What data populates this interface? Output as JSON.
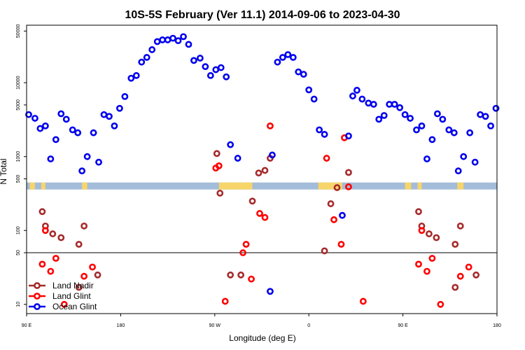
{
  "chart_data": {
    "type": "scatter",
    "title": "10S-5S February (Ver 11.1)   2014-09-06 to 2023-04-30",
    "xlabel": "Longitude (deg E)",
    "ylabel": "N Total",
    "x_ticks": [
      {
        "value": 90,
        "label": "90 E"
      },
      {
        "value": 180,
        "label": "180"
      },
      {
        "value": 270,
        "label": "90 W"
      },
      {
        "value": 360,
        "label": "0"
      },
      {
        "value": 450,
        "label": "90 E"
      },
      {
        "value": 540,
        "label": "180"
      }
    ],
    "y_ticks": [
      10,
      50,
      100,
      500,
      1000,
      5000,
      10000,
      50000
    ],
    "xlim": [
      90,
      540
    ],
    "yscale": "log",
    "ylim": [
      7.5,
      60000
    ],
    "reference_line": 50,
    "land_band_y": 400,
    "legend_position": "bottom-left",
    "series": [
      {
        "name": "Land Nadir",
        "color": "#a52a2a",
        "points": [
          [
            105,
            180
          ],
          [
            108,
            115
          ],
          [
            115,
            90
          ],
          [
            123,
            80
          ],
          [
            140,
            65
          ],
          [
            145,
            115
          ],
          [
            158,
            25
          ],
          [
            140,
            17
          ],
          [
            272,
            1100
          ],
          [
            275,
            320
          ],
          [
            285,
            25
          ],
          [
            295,
            25
          ],
          [
            306,
            250
          ],
          [
            312,
            600
          ],
          [
            318,
            650
          ],
          [
            323,
            950
          ],
          [
            375,
            53
          ],
          [
            381,
            230
          ],
          [
            387,
            380
          ],
          [
            398,
            610
          ],
          [
            465,
            180
          ],
          [
            468,
            115
          ],
          [
            475,
            90
          ],
          [
            482,
            80
          ],
          [
            500,
            65
          ],
          [
            505,
            115
          ],
          [
            520,
            25
          ],
          [
            500,
            17
          ]
        ],
        "pie": null
      },
      {
        "name": "Land Glint",
        "color": "#ff0000",
        "points": [
          [
            105,
            35
          ],
          [
            108,
            100
          ],
          [
            113,
            28
          ],
          [
            118,
            42
          ],
          [
            126,
            10
          ],
          [
            145,
            24
          ],
          [
            153,
            32
          ],
          [
            271,
            700
          ],
          [
            274,
            750
          ],
          [
            280,
            11
          ],
          [
            297,
            50
          ],
          [
            300,
            65
          ],
          [
            305,
            22
          ],
          [
            313,
            170
          ],
          [
            318,
            150
          ],
          [
            323,
            2600
          ],
          [
            377,
            950
          ],
          [
            384,
            140
          ],
          [
            391,
            65
          ],
          [
            394,
            1800
          ],
          [
            398,
            390
          ],
          [
            412,
            11
          ],
          [
            465,
            35
          ],
          [
            468,
            100
          ],
          [
            473,
            28
          ],
          [
            478,
            42
          ],
          [
            486,
            10
          ],
          [
            505,
            24
          ],
          [
            513,
            32
          ]
        ]
      },
      {
        "name": "Ocean Glint",
        "color": "#0000ee",
        "points": [
          [
            92,
            3700
          ],
          [
            98,
            3300
          ],
          [
            103,
            2400
          ],
          [
            108,
            2600
          ],
          [
            113,
            930
          ],
          [
            118,
            1700
          ],
          [
            123,
            3800
          ],
          [
            128,
            3200
          ],
          [
            134,
            2300
          ],
          [
            139,
            2100
          ],
          [
            143,
            640
          ],
          [
            148,
            1000
          ],
          [
            154,
            2100
          ],
          [
            159,
            840
          ],
          [
            164,
            3700
          ],
          [
            169,
            3500
          ],
          [
            174,
            2600
          ],
          [
            179,
            4500
          ],
          [
            184,
            6500
          ],
          [
            190,
            11500
          ],
          [
            195,
            12500
          ],
          [
            200,
            19000
          ],
          [
            205,
            22000
          ],
          [
            210,
            28000
          ],
          [
            215,
            36000
          ],
          [
            220,
            38000
          ],
          [
            225,
            38000
          ],
          [
            230,
            40000
          ],
          [
            235,
            37000
          ],
          [
            240,
            42000
          ],
          [
            245,
            33000
          ],
          [
            250,
            20000
          ],
          [
            256,
            21500
          ],
          [
            261,
            16500
          ],
          [
            266,
            12500
          ],
          [
            271,
            15000
          ],
          [
            276,
            16000
          ],
          [
            281,
            12000
          ],
          [
            285,
            1450
          ],
          [
            292,
            950
          ],
          [
            323,
            15
          ],
          [
            325,
            1050
          ],
          [
            330,
            19000
          ],
          [
            335,
            22000
          ],
          [
            340,
            24000
          ],
          [
            345,
            22000
          ],
          [
            350,
            14000
          ],
          [
            355,
            13000
          ],
          [
            360,
            8000
          ],
          [
            365,
            6000
          ],
          [
            370,
            2300
          ],
          [
            375,
            2000
          ],
          [
            392,
            160
          ],
          [
            398,
            1900
          ],
          [
            402,
            6600
          ],
          [
            406,
            7900
          ],
          [
            411,
            6000
          ],
          [
            417,
            5300
          ],
          [
            422,
            5100
          ],
          [
            427,
            3200
          ],
          [
            432,
            3600
          ],
          [
            437,
            5100
          ],
          [
            442,
            5100
          ],
          [
            447,
            4600
          ],
          [
            452,
            3700
          ],
          [
            457,
            3300
          ],
          [
            463,
            2300
          ],
          [
            468,
            2600
          ],
          [
            473,
            930
          ],
          [
            478,
            1700
          ],
          [
            483,
            3800
          ],
          [
            488,
            3200
          ],
          [
            494,
            2300
          ],
          [
            499,
            2100
          ],
          [
            503,
            640
          ],
          [
            508,
            1000
          ],
          [
            514,
            2100
          ],
          [
            519,
            840
          ],
          [
            524,
            3700
          ],
          [
            529,
            3500
          ],
          [
            534,
            2600
          ],
          [
            539,
            4500
          ]
        ]
      }
    ]
  }
}
